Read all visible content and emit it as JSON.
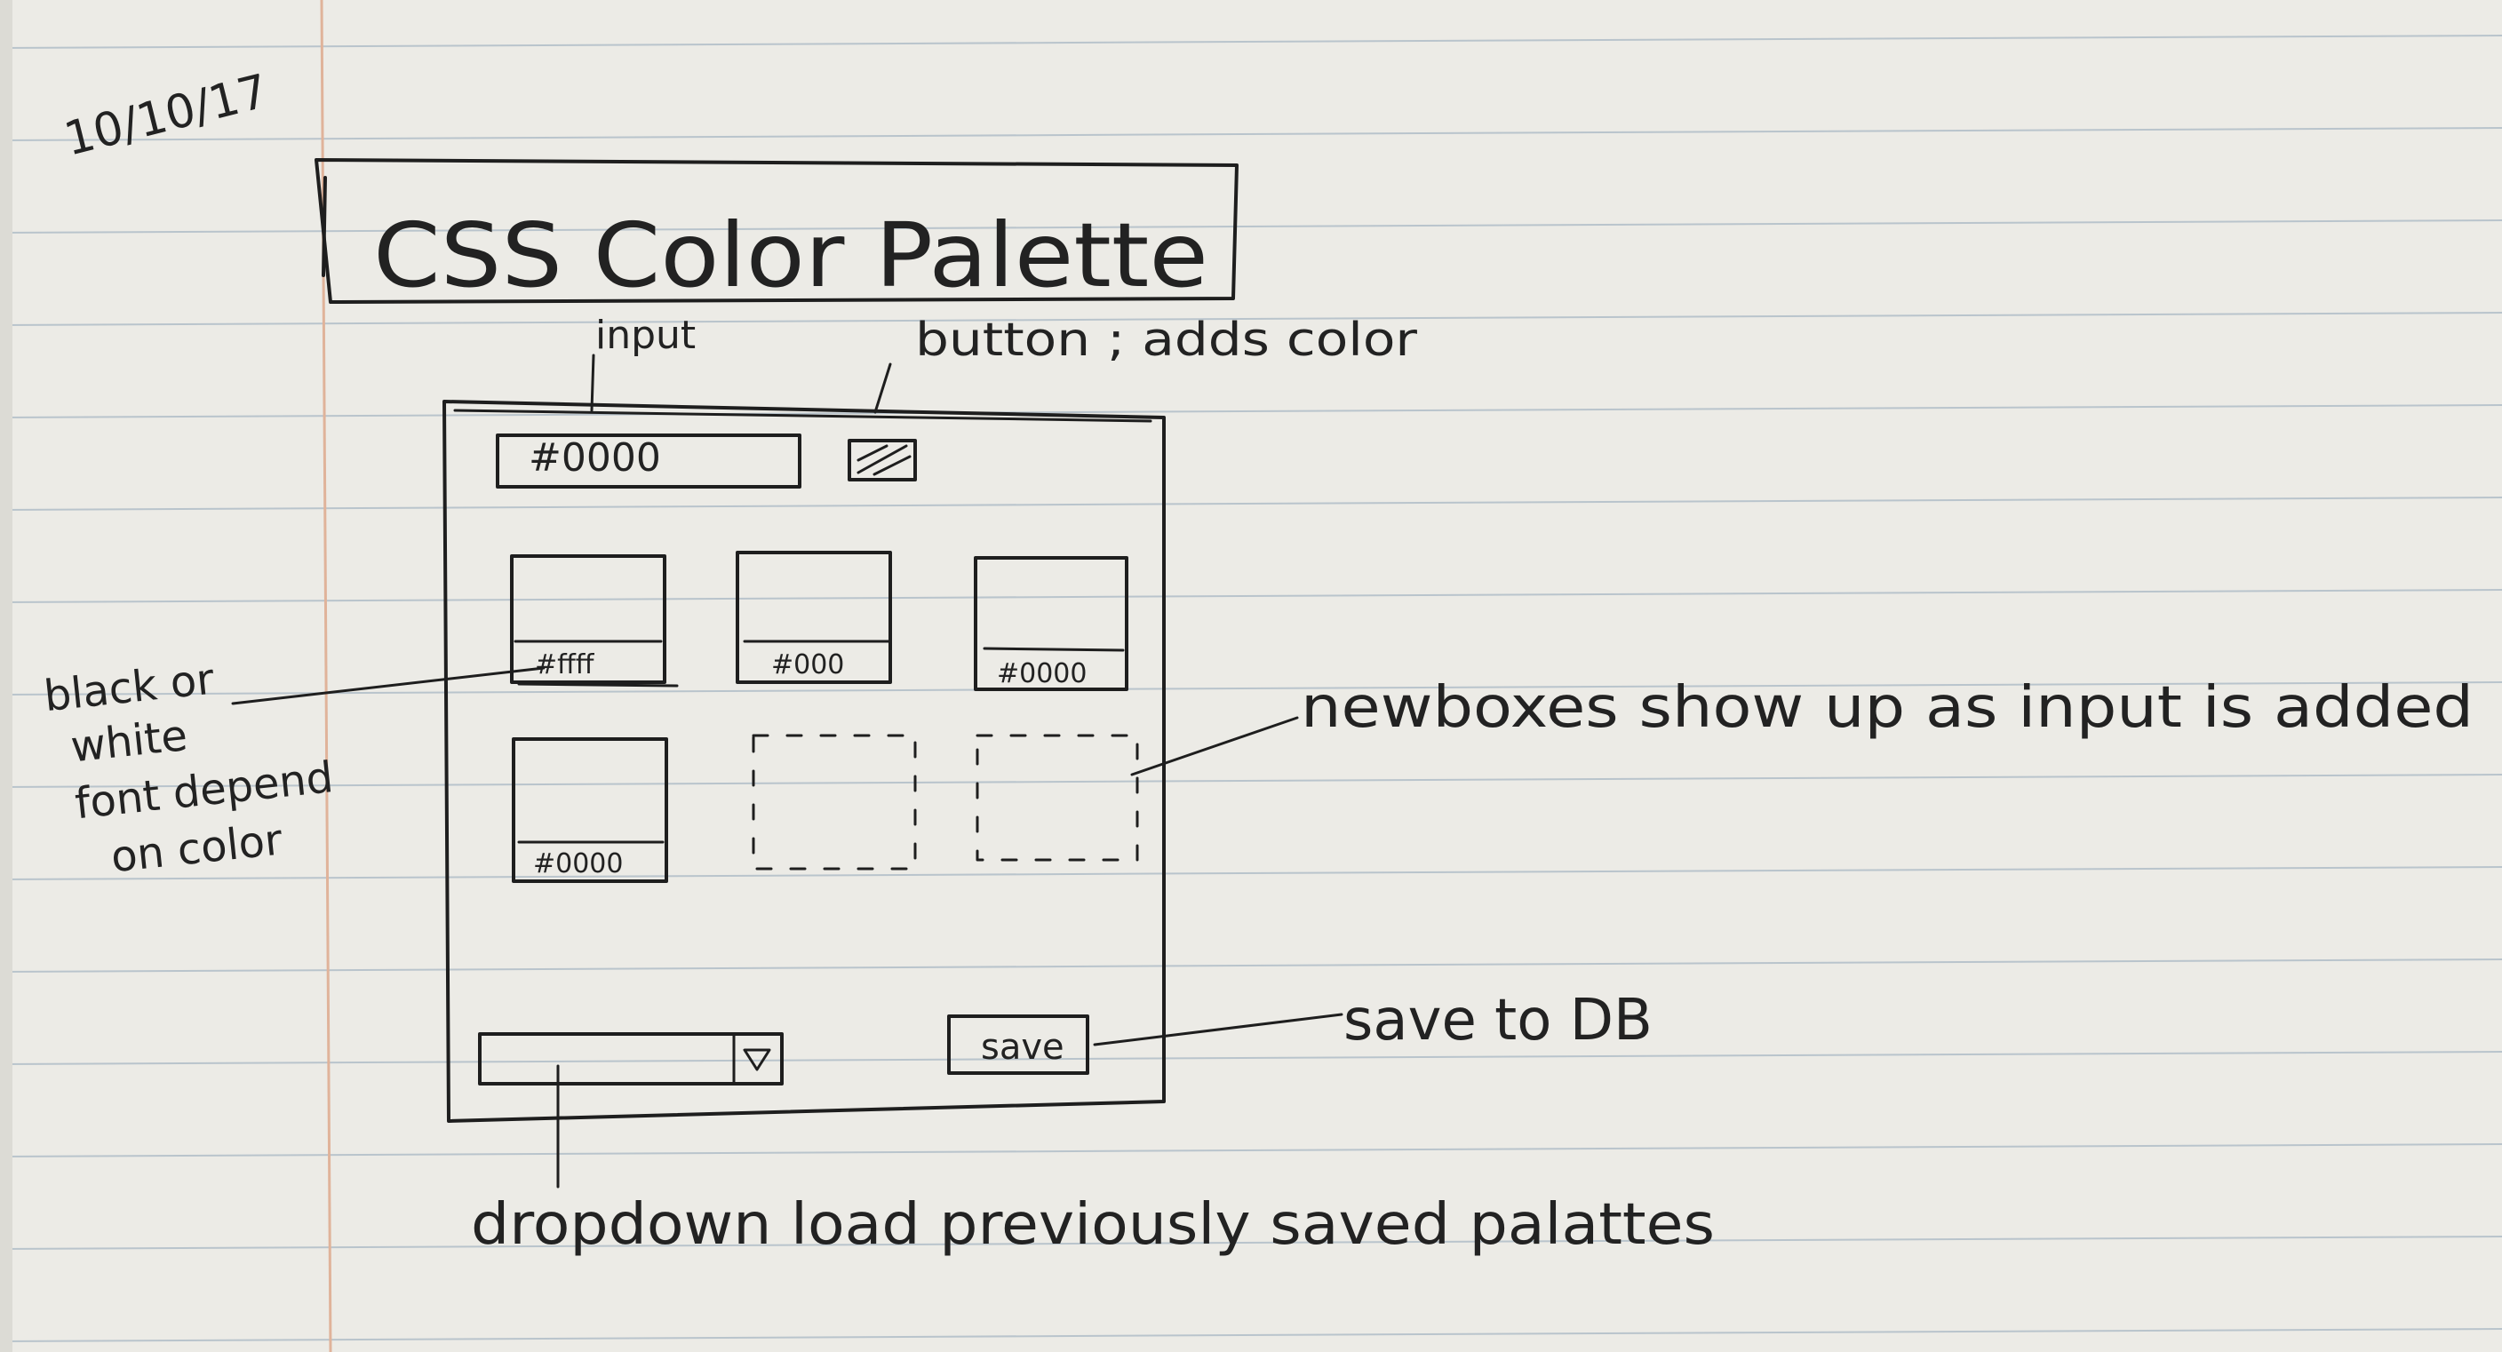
{
  "date": "10/10/17",
  "app_title": "CSS Color Palette",
  "input": {
    "value": "#0000",
    "callout": "input"
  },
  "add_button": {
    "callout": "button ; adds color"
  },
  "swatches": [
    {
      "label": "#ffff",
      "color": "#ffffff"
    },
    {
      "label": "#000",
      "color": "#000000"
    },
    {
      "label": "#0000",
      "color": "#000000"
    },
    {
      "label": "#0000",
      "color": "#000000"
    }
  ],
  "save_button": {
    "label": "save",
    "callout": "save to DB"
  },
  "dropdown": {
    "callout": "dropdown load previously saved palattes"
  },
  "annotations": {
    "font_note": [
      "black or",
      "white",
      "font depend",
      "on color"
    ],
    "new_boxes": "newboxes show up as input is added"
  },
  "colors": {
    "ink": "#1e1e1e",
    "paper": "#ecebe6",
    "rule_line": "#b9c4cc",
    "margin_line": "#e0b39a"
  }
}
